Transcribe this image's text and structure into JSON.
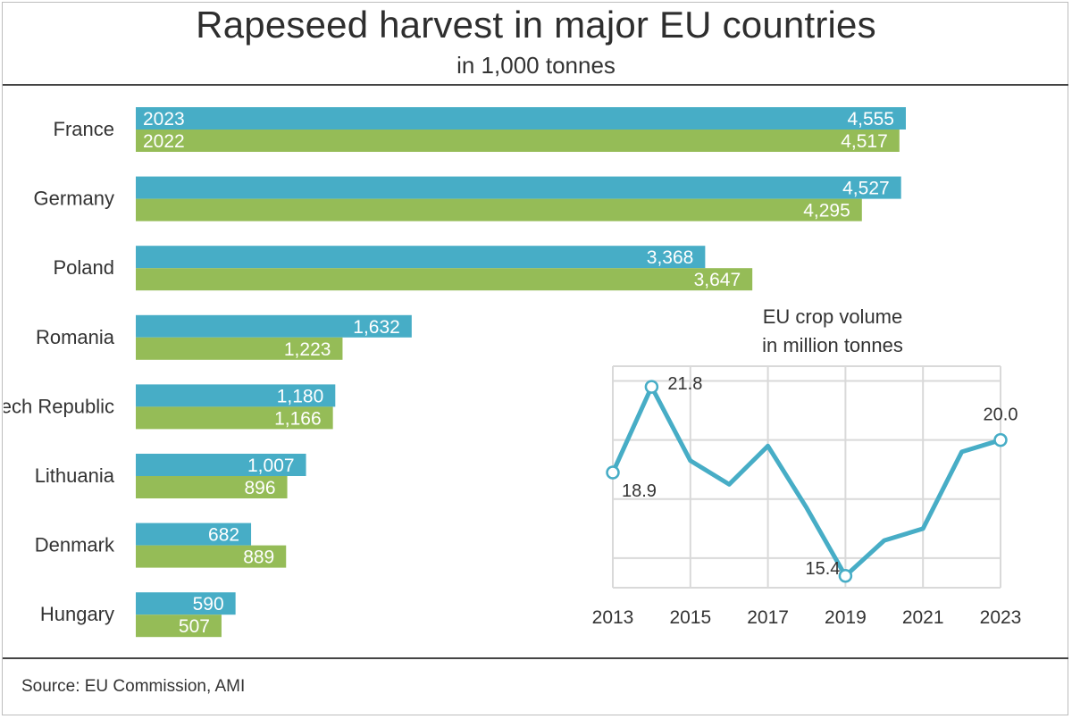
{
  "header": {
    "title": "Rapeseed harvest in major EU countries",
    "subtitle": "in 1,000 tonnes"
  },
  "footer": {
    "source": "Source:  EU Commission, AMI"
  },
  "colors": {
    "series_2023": "#47adc6",
    "series_2022": "#95bc57",
    "line": "#47adc6",
    "grid": "#d9d9d9"
  },
  "chart_data": [
    {
      "type": "bar",
      "orientation": "horizontal",
      "title": "Rapeseed harvest in major EU countries",
      "subtitle": "in 1,000 tonnes",
      "categories": [
        "France",
        "Germany",
        "Poland",
        "Romania",
        "Czech Republic",
        "Lithuania",
        "Denmark",
        "Hungary"
      ],
      "series": [
        {
          "name": "2023",
          "values": [
            4555,
            4527,
            3368,
            1632,
            1180,
            1007,
            682,
            590
          ],
          "labels": [
            "4,555",
            "4,527",
            "3,368",
            "1,632",
            "1,180",
            "1,007",
            "682",
            "590"
          ]
        },
        {
          "name": "2022",
          "values": [
            4517,
            4295,
            3647,
            1223,
            1166,
            896,
            889,
            507
          ],
          "labels": [
            "4,517",
            "4,295",
            "3,647",
            "1,223",
            "1,166",
            "896",
            "889",
            "507"
          ]
        }
      ],
      "xlim": [
        0,
        4555
      ],
      "legend": "inline-in-first-bars"
    },
    {
      "type": "line",
      "title": "EU crop volume\nin million tonnes",
      "title_lines": [
        "EU crop volume",
        "in million tonnes"
      ],
      "x": [
        2013,
        2014,
        2015,
        2016,
        2017,
        2018,
        2019,
        2020,
        2021,
        2022,
        2023
      ],
      "y": [
        18.9,
        21.8,
        19.3,
        18.5,
        19.8,
        17.7,
        15.4,
        16.6,
        17.0,
        19.6,
        20.0
      ],
      "xticks": [
        "2013",
        "2015",
        "2017",
        "2019",
        "2021",
        "2023"
      ],
      "ylim": [
        15.0,
        22.5
      ],
      "grid": true,
      "annotations": [
        {
          "x": 2013,
          "y": 18.9,
          "text": "18.9"
        },
        {
          "x": 2014,
          "y": 21.8,
          "text": "21.8"
        },
        {
          "x": 2019,
          "y": 15.4,
          "text": "15.4"
        },
        {
          "x": 2023,
          "y": 20.0,
          "text": "20.0"
        }
      ]
    }
  ]
}
